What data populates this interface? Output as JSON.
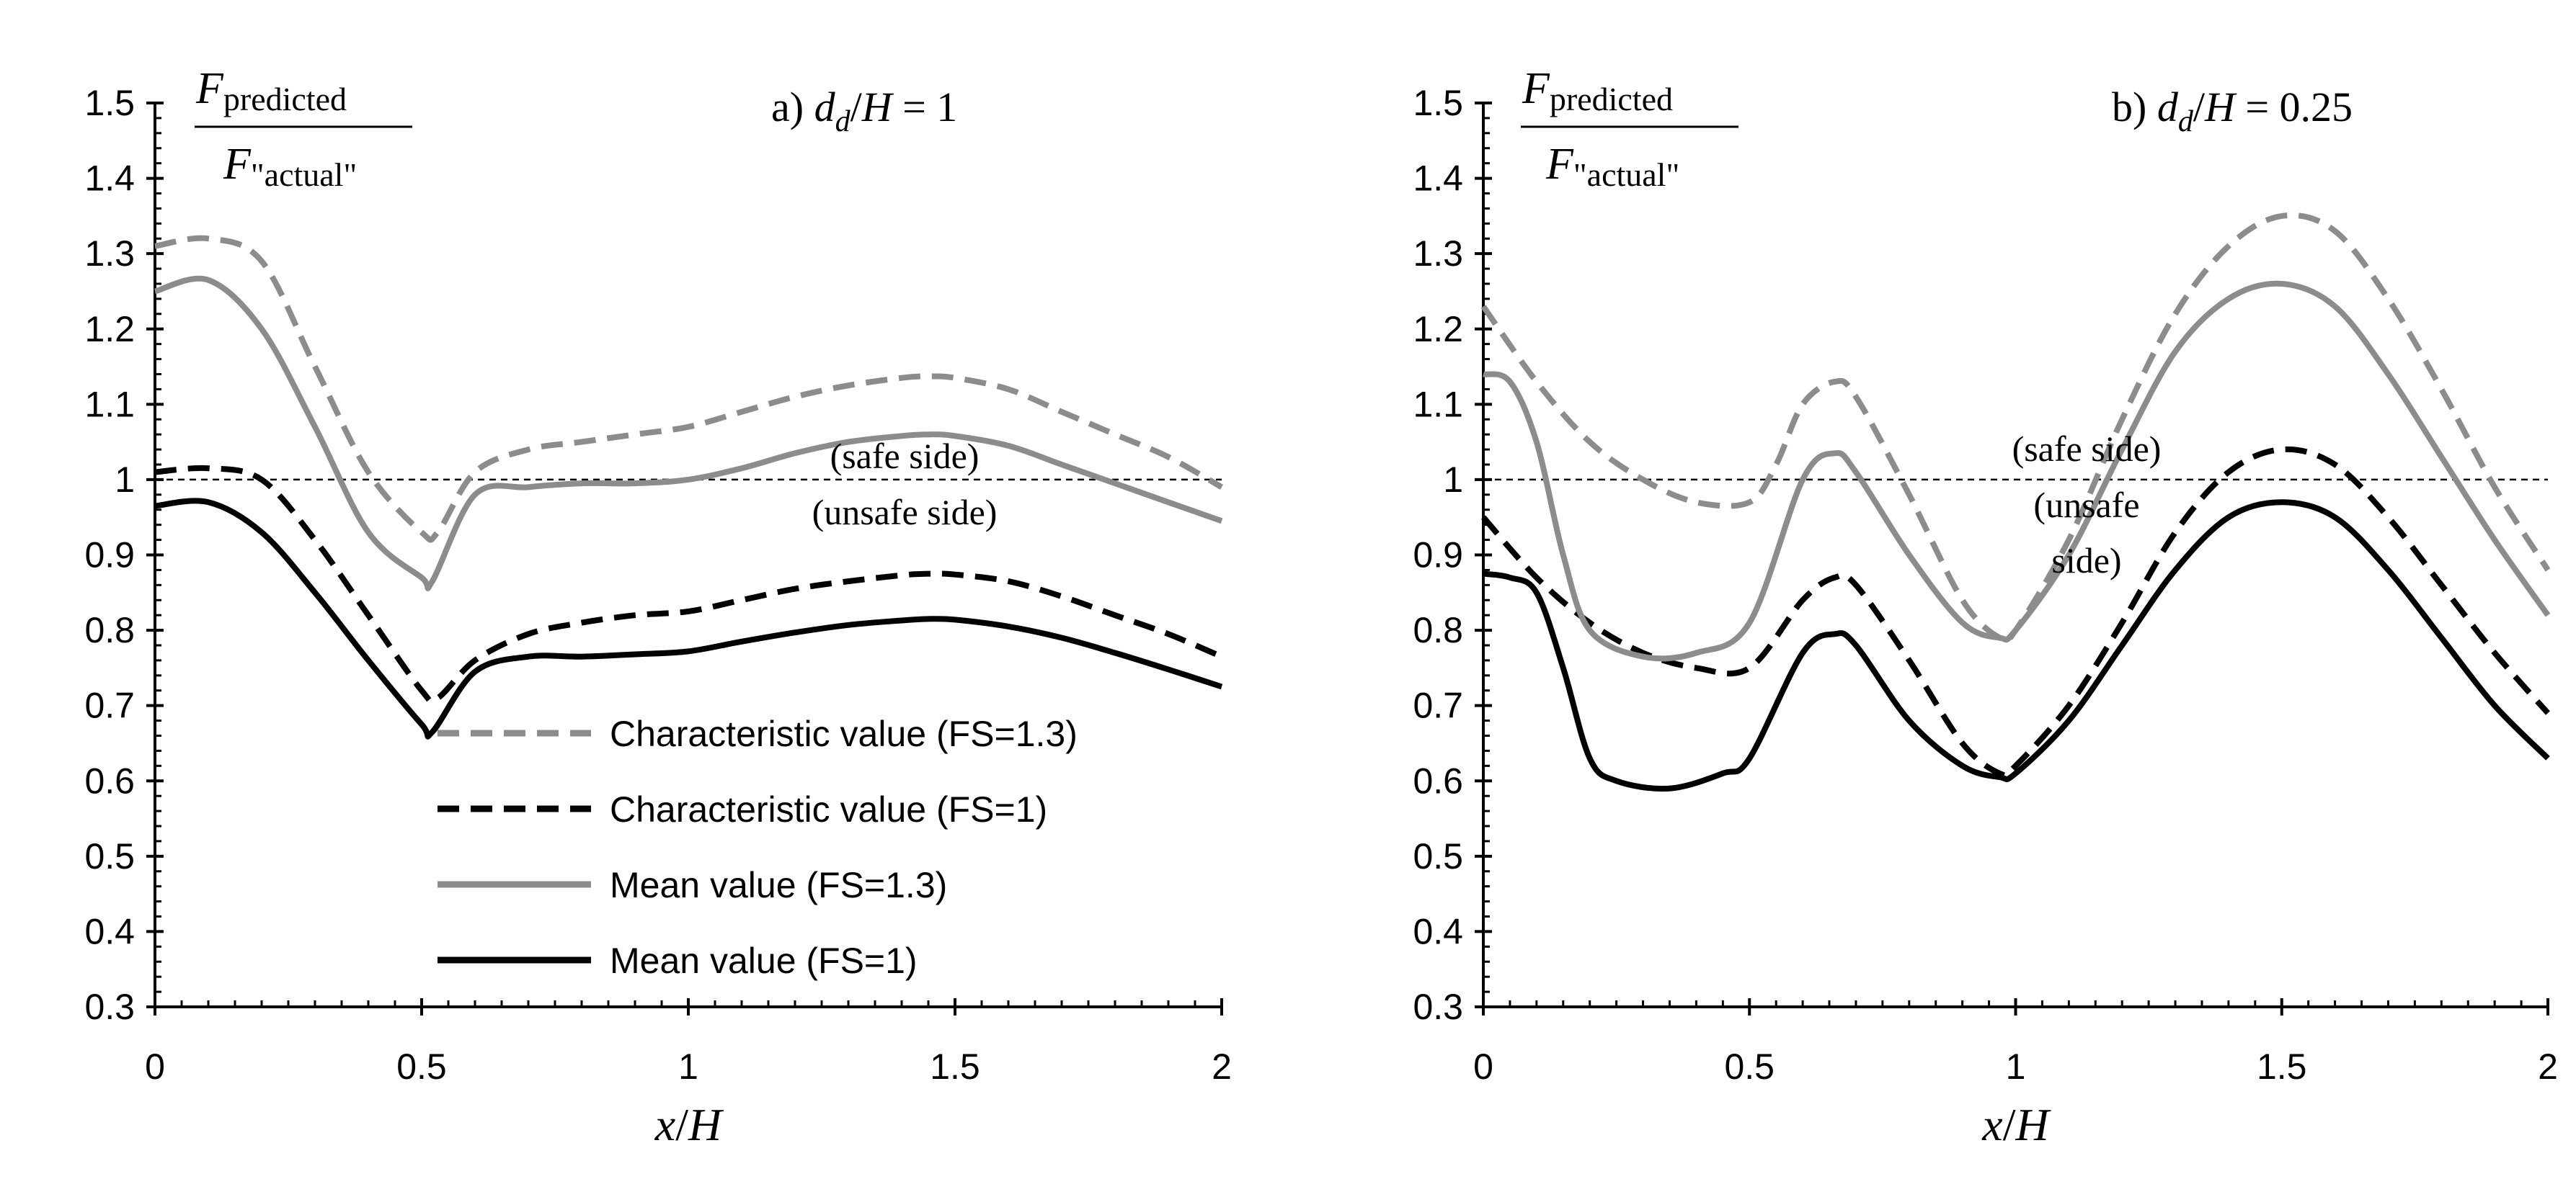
{
  "chart_data": [
    {
      "type": "line",
      "title": "a) d_d/H = 1",
      "title_parts": {
        "prefix": "a)",
        "var": "d",
        "sub": "d",
        "mid": "/",
        "var2": "H",
        "eq": "= 1"
      },
      "ylabel": {
        "numerator": "F",
        "numerator_sub": "predicted",
        "denominator": "F",
        "denominator_sub": "\"actual\""
      },
      "xlabel": {
        "var": "x",
        "sep": "/",
        "var2": "H"
      },
      "xlim": [
        0,
        2
      ],
      "ylim": [
        0.3,
        1.5
      ],
      "x_ticks": [
        "0",
        "0.5",
        "1",
        "1.5",
        "2"
      ],
      "y_ticks": [
        "0.3",
        "0.4",
        "0.5",
        "0.6",
        "0.7",
        "0.8",
        "0.9",
        "1",
        "1.1",
        "1.2",
        "1.3",
        "1.4",
        "1.5"
      ],
      "reference_line": 1,
      "annotations": [
        "(safe side)",
        "(unsafe side)"
      ],
      "series": [
        {
          "name": "Characteristic value (FS=1.3)",
          "color": "#8c8c8c",
          "dash": true,
          "x": [
            0,
            0.1,
            0.2,
            0.3,
            0.4,
            0.5,
            0.53,
            0.6,
            0.7,
            0.8,
            0.9,
            1.0,
            1.1,
            1.2,
            1.3,
            1.4,
            1.45,
            1.5,
            1.6,
            1.7,
            1.8,
            1.9,
            2.0
          ],
          "y": [
            1.31,
            1.32,
            1.29,
            1.15,
            1.01,
            0.93,
            0.93,
            1.01,
            1.04,
            1.05,
            1.06,
            1.07,
            1.09,
            1.11,
            1.125,
            1.135,
            1.137,
            1.135,
            1.12,
            1.09,
            1.06,
            1.03,
            0.99
          ]
        },
        {
          "name": "Characteristic value (FS=1)",
          "color": "#000000",
          "dash": true,
          "x": [
            0,
            0.1,
            0.2,
            0.3,
            0.4,
            0.5,
            0.53,
            0.6,
            0.7,
            0.8,
            0.9,
            1.0,
            1.1,
            1.2,
            1.3,
            1.4,
            1.45,
            1.5,
            1.6,
            1.7,
            1.8,
            1.9,
            2.0
          ],
          "y": [
            1.01,
            1.015,
            1.0,
            0.92,
            0.82,
            0.72,
            0.71,
            0.76,
            0.795,
            0.81,
            0.82,
            0.825,
            0.84,
            0.855,
            0.865,
            0.873,
            0.875,
            0.874,
            0.865,
            0.845,
            0.82,
            0.795,
            0.765
          ]
        },
        {
          "name": "Mean value (FS=1.3)",
          "color": "#8c8c8c",
          "dash": false,
          "x": [
            0,
            0.1,
            0.2,
            0.3,
            0.4,
            0.5,
            0.52,
            0.6,
            0.7,
            0.8,
            0.9,
            1.0,
            1.1,
            1.2,
            1.3,
            1.4,
            1.45,
            1.5,
            1.6,
            1.7,
            1.8,
            1.9,
            2.0
          ],
          "y": [
            1.25,
            1.265,
            1.2,
            1.07,
            0.93,
            0.87,
            0.865,
            0.98,
            0.99,
            0.995,
            0.995,
            1.0,
            1.015,
            1.035,
            1.05,
            1.058,
            1.06,
            1.058,
            1.045,
            1.02,
            0.995,
            0.97,
            0.945
          ]
        },
        {
          "name": "Mean value  (FS=1)",
          "color": "#000000",
          "dash": false,
          "x": [
            0,
            0.1,
            0.2,
            0.3,
            0.4,
            0.5,
            0.52,
            0.6,
            0.7,
            0.8,
            0.9,
            1.0,
            1.1,
            1.2,
            1.3,
            1.4,
            1.45,
            1.5,
            1.6,
            1.7,
            1.8,
            1.9,
            2.0
          ],
          "y": [
            0.965,
            0.97,
            0.93,
            0.85,
            0.76,
            0.675,
            0.665,
            0.745,
            0.765,
            0.765,
            0.768,
            0.772,
            0.785,
            0.797,
            0.807,
            0.813,
            0.815,
            0.814,
            0.805,
            0.79,
            0.77,
            0.748,
            0.725
          ]
        }
      ],
      "legend": [
        "Characteristic value (FS=1.3)",
        "Characteristic value (FS=1)",
        "Mean value (FS=1.3)",
        "Mean value  (FS=1)"
      ]
    },
    {
      "type": "line",
      "title": "b) d_d/H = 0.25",
      "title_parts": {
        "prefix": "b)",
        "var": "d",
        "sub": "d",
        "mid": "/",
        "var2": "H",
        "eq": "= 0.25"
      },
      "ylabel": {
        "numerator": "F",
        "numerator_sub": "predicted",
        "denominator": "F",
        "denominator_sub": "\"actual\""
      },
      "xlabel": {
        "var": "x",
        "sep": "/",
        "var2": "H"
      },
      "xlim": [
        0,
        2
      ],
      "ylim": [
        0.3,
        1.5
      ],
      "x_ticks": [
        "0",
        "0.5",
        "1",
        "1.5",
        "2"
      ],
      "y_ticks": [
        "0.3",
        "0.4",
        "0.5",
        "0.6",
        "0.7",
        "0.8",
        "0.9",
        "1",
        "1.1",
        "1.2",
        "1.3",
        "1.4",
        "1.5"
      ],
      "reference_line": 1,
      "annotations": [
        "(safe side)",
        "(unsafe",
        "side)"
      ],
      "series": [
        {
          "name": "Characteristic value (FS=1.3)",
          "color": "#8c8c8c",
          "dash": true,
          "x": [
            0,
            0.1,
            0.2,
            0.3,
            0.4,
            0.5,
            0.55,
            0.6,
            0.66,
            0.7,
            0.8,
            0.9,
            0.97,
            1.0,
            1.1,
            1.2,
            1.3,
            1.4,
            1.5,
            1.6,
            1.7,
            1.8,
            1.9,
            2.0
          ],
          "y": [
            1.23,
            1.13,
            1.05,
            1.0,
            0.97,
            0.97,
            1.02,
            1.1,
            1.13,
            1.11,
            0.98,
            0.84,
            0.79,
            0.8,
            0.92,
            1.08,
            1.22,
            1.31,
            1.35,
            1.33,
            1.24,
            1.12,
            0.99,
            0.88
          ]
        },
        {
          "name": "Characteristic value (FS=1)",
          "color": "#000000",
          "dash": true,
          "x": [
            0,
            0.1,
            0.2,
            0.3,
            0.4,
            0.5,
            0.6,
            0.66,
            0.7,
            0.8,
            0.9,
            0.97,
            1.0,
            1.1,
            1.2,
            1.3,
            1.4,
            1.5,
            1.6,
            1.7,
            1.8,
            1.9,
            2.0
          ],
          "y": [
            0.95,
            0.87,
            0.81,
            0.77,
            0.75,
            0.75,
            0.84,
            0.87,
            0.86,
            0.76,
            0.65,
            0.61,
            0.62,
            0.7,
            0.81,
            0.93,
            1.01,
            1.04,
            1.02,
            0.95,
            0.86,
            0.77,
            0.69
          ]
        },
        {
          "name": "Mean value (FS=1.3)",
          "color": "#8c8c8c",
          "dash": false,
          "x": [
            0,
            0.05,
            0.1,
            0.15,
            0.2,
            0.3,
            0.4,
            0.5,
            0.6,
            0.66,
            0.7,
            0.8,
            0.9,
            0.97,
            1.0,
            1.1,
            1.2,
            1.3,
            1.4,
            1.5,
            1.6,
            1.7,
            1.8,
            1.9,
            2.0
          ],
          "y": [
            1.14,
            1.13,
            1.05,
            0.9,
            0.8,
            0.765,
            0.77,
            0.81,
            1.0,
            1.035,
            1.01,
            0.9,
            0.81,
            0.79,
            0.8,
            0.9,
            1.04,
            1.17,
            1.24,
            1.26,
            1.23,
            1.14,
            1.03,
            0.92,
            0.82
          ]
        },
        {
          "name": "Mean value  (FS=1)",
          "color": "#000000",
          "dash": false,
          "x": [
            0,
            0.05,
            0.1,
            0.15,
            0.2,
            0.25,
            0.35,
            0.45,
            0.5,
            0.6,
            0.66,
            0.7,
            0.8,
            0.9,
            0.97,
            1.0,
            1.1,
            1.2,
            1.3,
            1.4,
            1.5,
            1.6,
            1.7,
            1.8,
            1.9,
            2.0
          ],
          "y": [
            0.875,
            0.87,
            0.85,
            0.75,
            0.63,
            0.6,
            0.59,
            0.61,
            0.63,
            0.77,
            0.795,
            0.78,
            0.68,
            0.62,
            0.605,
            0.61,
            0.68,
            0.78,
            0.88,
            0.95,
            0.97,
            0.95,
            0.88,
            0.79,
            0.7,
            0.63
          ]
        }
      ]
    }
  ]
}
